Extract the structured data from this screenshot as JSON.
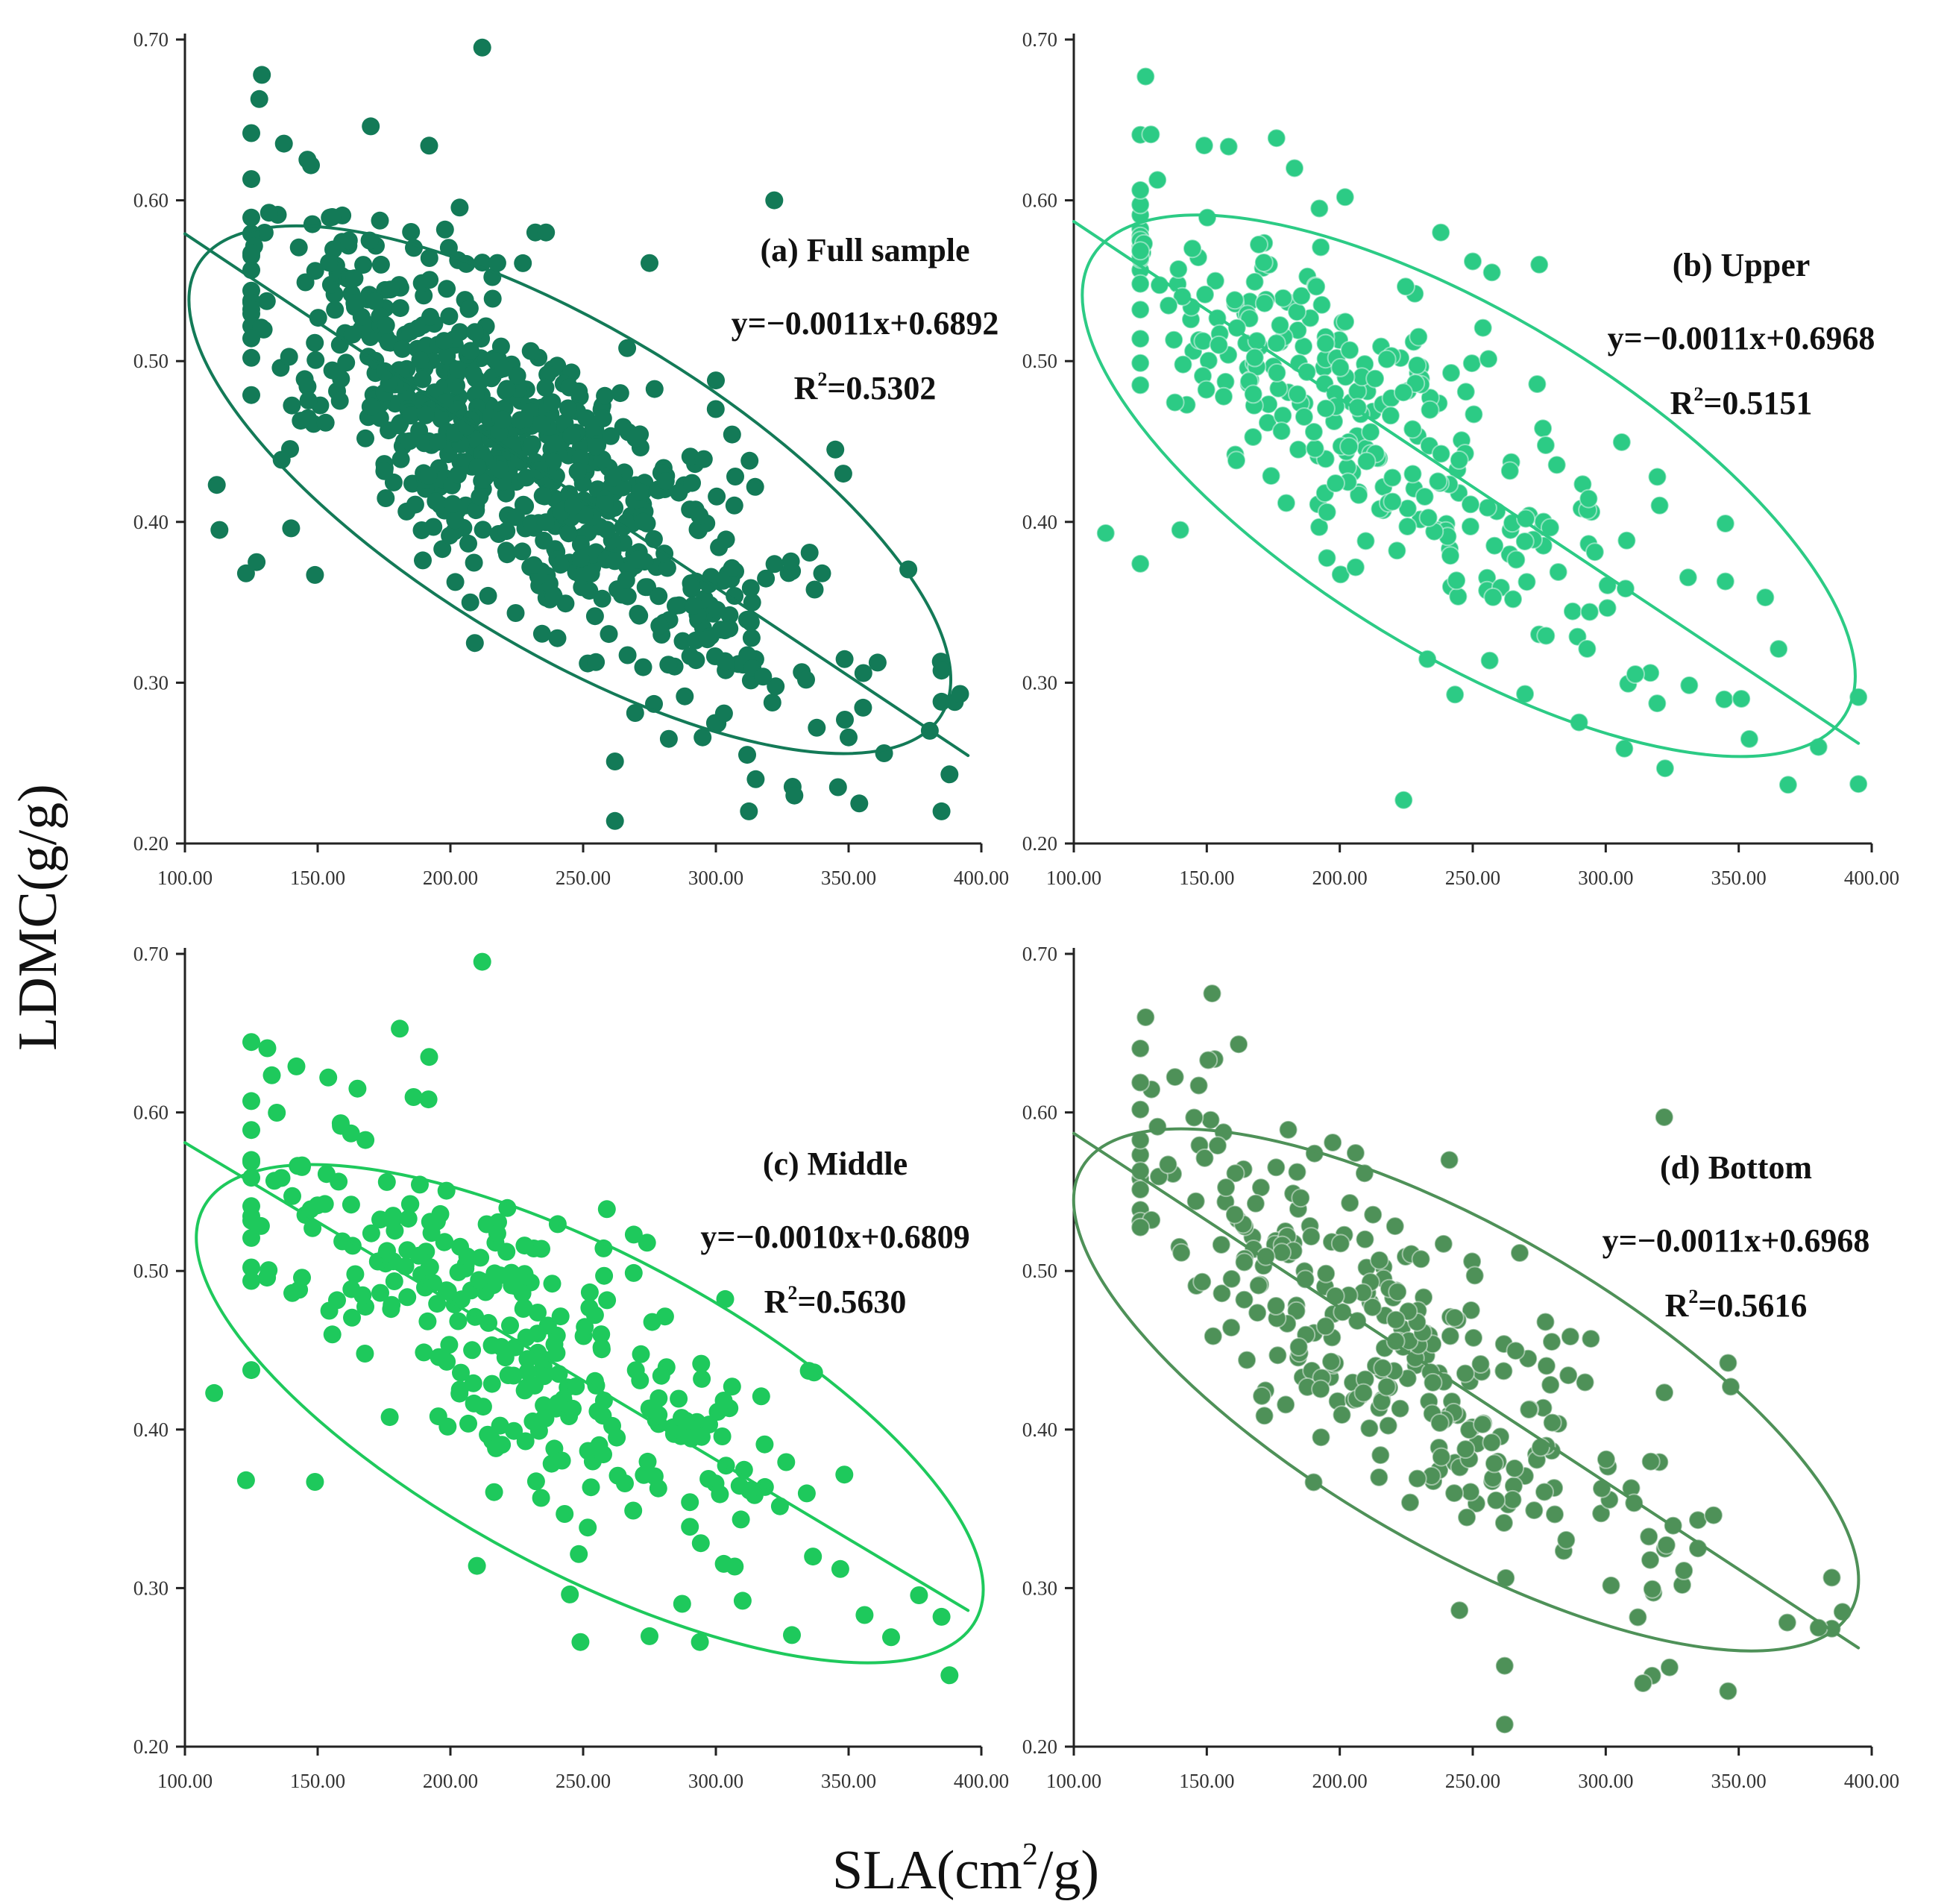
{
  "figure": {
    "ylabel": "LDMC(g/g)",
    "xlabel_main": "SLA(cm",
    "xlabel_sup": "2",
    "xlabel_tail": "/g)"
  },
  "chart_data": [
    {
      "type": "scatter",
      "panel": "a",
      "title": "(a) Full sample",
      "equation": "y=−0.0011x+0.6892",
      "r2_prefix": "R",
      "r2_sup": "2",
      "r2_value": "=0.5302",
      "color": "#137a57",
      "slope": -0.0011,
      "intercept": 0.6892,
      "xlim": [
        100,
        400
      ],
      "ylim": [
        0.2,
        0.7
      ],
      "xticks": [
        "100.00",
        "150.00",
        "200.00",
        "250.00",
        "300.00",
        "350.00",
        "400.00"
      ],
      "yticks": [
        "0.20",
        "0.30",
        "0.40",
        "0.50",
        "0.60",
        "0.70"
      ],
      "ellipse": {
        "center": [
          250,
          0.42
        ],
        "major_endpoints": [
          [
            105,
            0.56
          ],
          [
            385,
            0.28
          ]
        ],
        "minor_halfwidth": 0.1
      },
      "density_center": [
        215,
        0.45
      ],
      "n_points": 700,
      "outliers": [
        [
          112,
          0.423
        ],
        [
          113,
          0.395
        ],
        [
          123,
          0.368
        ],
        [
          127,
          0.375
        ],
        [
          129,
          0.678
        ],
        [
          128,
          0.663
        ],
        [
          140,
          0.396
        ],
        [
          149,
          0.367
        ],
        [
          170,
          0.646
        ],
        [
          192,
          0.634
        ],
        [
          212,
          0.695
        ],
        [
          262,
          0.214
        ],
        [
          262,
          0.251
        ],
        [
          315,
          0.24
        ],
        [
          295,
          0.266
        ],
        [
          322,
          0.6
        ],
        [
          338,
          0.272
        ],
        [
          346,
          0.235
        ],
        [
          350,
          0.266
        ],
        [
          300,
          0.488
        ],
        [
          275,
          0.561
        ],
        [
          345,
          0.445
        ],
        [
          348,
          0.43
        ],
        [
          388,
          0.243
        ],
        [
          390,
          0.288
        ],
        [
          392,
          0.293
        ],
        [
          232,
          0.58
        ],
        [
          236,
          0.58
        ]
      ]
    },
    {
      "type": "scatter",
      "panel": "b",
      "title": "(b) Upper",
      "equation": "y=−0.0011x+0.6968",
      "r2_prefix": "R",
      "r2_sup": "2",
      "r2_value": "=0.5151",
      "color": "#2ccb85",
      "slope": -0.0011,
      "intercept": 0.6968,
      "xlim": [
        100,
        400
      ],
      "ylim": [
        0.2,
        0.7
      ],
      "xticks": [
        "100.00",
        "150.00",
        "200.00",
        "250.00",
        "300.00",
        "350.00",
        "400.00"
      ],
      "yticks": [
        "0.20",
        "0.30",
        "0.40",
        "0.50",
        "0.60",
        "0.70"
      ],
      "ellipse": {
        "center": [
          250,
          0.43
        ],
        "major_endpoints": [
          [
            107,
            0.565
          ],
          [
            390,
            0.28
          ]
        ],
        "minor_halfwidth": 0.105
      },
      "density_center": [
        195,
        0.46
      ],
      "n_points": 300,
      "outliers": [
        [
          112,
          0.393
        ],
        [
          125,
          0.374
        ],
        [
          127,
          0.677
        ],
        [
          129,
          0.641
        ],
        [
          140,
          0.395
        ],
        [
          183,
          0.62
        ],
        [
          202,
          0.602
        ],
        [
          238,
          0.58
        ],
        [
          250,
          0.562
        ],
        [
          275,
          0.56
        ],
        [
          224,
          0.227
        ],
        [
          307,
          0.259
        ],
        [
          351,
          0.29
        ],
        [
          354,
          0.265
        ],
        [
          380,
          0.26
        ],
        [
          395,
          0.291
        ],
        [
          395,
          0.237
        ],
        [
          365,
          0.321
        ],
        [
          360,
          0.353
        ],
        [
          345,
          0.363
        ],
        [
          345,
          0.399
        ]
      ]
    },
    {
      "type": "scatter",
      "panel": "c",
      "title": "(c) Middle",
      "equation": "y=−0.0010x+0.6809",
      "r2_prefix": "R",
      "r2_sup": "2",
      "r2_value": "=0.5630",
      "color": "#1ec95c",
      "slope": -0.001,
      "intercept": 0.6809,
      "xlim": [
        100,
        400
      ],
      "ylim": [
        0.2,
        0.7
      ],
      "xticks": [
        "100.00",
        "150.00",
        "200.00",
        "250.00",
        "300.00",
        "350.00",
        "400.00"
      ],
      "yticks": [
        "0.20",
        "0.30",
        "0.40",
        "0.50",
        "0.60",
        "0.70"
      ],
      "ellipse": {
        "center": [
          253,
          0.41
        ],
        "major_endpoints": [
          [
            107,
            0.54
          ],
          [
            398,
            0.28
          ]
        ],
        "minor_halfwidth": 0.1
      },
      "density_center": [
        205,
        0.47
      ],
      "n_points": 300,
      "outliers": [
        [
          111,
          0.423
        ],
        [
          123,
          0.368
        ],
        [
          149,
          0.367
        ],
        [
          142,
          0.629
        ],
        [
          154,
          0.622
        ],
        [
          165,
          0.615
        ],
        [
          192,
          0.635
        ],
        [
          212,
          0.695
        ],
        [
          249,
          0.266
        ],
        [
          294,
          0.266
        ],
        [
          335,
          0.437
        ],
        [
          337,
          0.436
        ],
        [
          356,
          0.283
        ],
        [
          366,
          0.269
        ],
        [
          388,
          0.245
        ],
        [
          210,
          0.314
        ],
        [
          245,
          0.296
        ]
      ]
    },
    {
      "type": "scatter",
      "panel": "d",
      "title": "(d) Bottom",
      "equation": "y=−0.0011x+0.6968",
      "r2_prefix": "R",
      "r2_sup": "2",
      "r2_value": "=0.5616",
      "color": "#4e9158",
      "slope": -0.0011,
      "intercept": 0.6968,
      "xlim": [
        100,
        400
      ],
      "ylim": [
        0.2,
        0.7
      ],
      "xticks": [
        "100.00",
        "150.00",
        "200.00",
        "250.00",
        "300.00",
        "350.00",
        "400.00"
      ],
      "yticks": [
        "0.20",
        "0.30",
        "0.40",
        "0.50",
        "0.60",
        "0.70"
      ],
      "ellipse": {
        "center": [
          250,
          0.43
        ],
        "major_endpoints": [
          [
            103,
            0.565
          ],
          [
            392,
            0.285
          ]
        ],
        "minor_halfwidth": 0.1
      },
      "density_center": [
        205,
        0.47
      ],
      "n_points": 300,
      "outliers": [
        [
          127,
          0.66
        ],
        [
          152,
          0.675
        ],
        [
          162,
          0.643
        ],
        [
          147,
          0.617
        ],
        [
          322,
          0.597
        ],
        [
          262,
          0.214
        ],
        [
          262,
          0.251
        ],
        [
          314,
          0.24
        ],
        [
          324,
          0.25
        ],
        [
          346,
          0.235
        ],
        [
          346,
          0.442
        ],
        [
          347,
          0.427
        ],
        [
          389,
          0.285
        ],
        [
          380,
          0.275
        ],
        [
          245,
          0.286
        ]
      ]
    }
  ]
}
